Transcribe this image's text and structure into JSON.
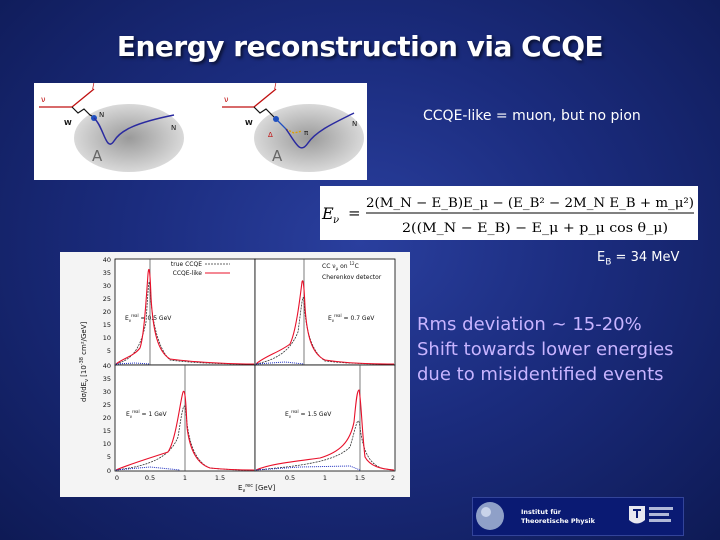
{
  "slide": {
    "title": "Energy reconstruction via CCQE",
    "ccqe_note": "CCQE-like = muon, but no pion",
    "binding_energy": "E",
    "binding_sub": "B",
    "binding_value": " = 34 MeV",
    "bullets": [
      "Rms deviation ~ 15-20%",
      "Shift towards lower energies",
      "due to misidentified events"
    ]
  },
  "diagrams": {
    "left": {
      "nu": "ν",
      "l": "l",
      "W": "W",
      "N1": "N",
      "N2": "N",
      "A": "A"
    },
    "right": {
      "nu": "ν",
      "l": "l",
      "W": "W",
      "Delta": "Δ",
      "pi": "π",
      "N": "N",
      "A": "A"
    }
  },
  "formula": {
    "lhs": "E",
    "lhs_sub": "ν",
    "eq": "=",
    "numerator": "2(M_N − E_B)E_μ − (E_B² − 2M_N E_B + m_μ²)",
    "denominator": "2((M_N − E_B) − E_μ + p_μ cos θ_μ)"
  },
  "plot": {
    "legend": {
      "true": "true CCQE",
      "like": "CCQE-like"
    },
    "top_right_labels": [
      "CC ν",
      "μ",
      " on ",
      "12",
      "C",
      "Cherenkov detector"
    ],
    "ylabel": "dσ/dE",
    "ylabel_sub": "ν",
    "ylabel_units": " [10",
    "ylabel_exp": "-38",
    "ylabel_tail": " cm²/GeV]",
    "xlabel": "E",
    "xlabel_sub": "ν",
    "xlabel_sup": "rec",
    "xlabel_units": " [GeV]",
    "panel_labels": [
      {
        "e": "E",
        "sub": "ν",
        "sup": "real",
        "val": " = 0.5 GeV"
      },
      {
        "e": "E",
        "sub": "ν",
        "sup": "real",
        "val": " = 0.7 GeV"
      },
      {
        "e": "E",
        "sub": "ν",
        "sup": "real",
        "val": " = 1 GeV"
      },
      {
        "e": "E",
        "sub": "ν",
        "sup": "real",
        "val": " = 1.5 GeV"
      }
    ],
    "yticks_top": [
      "40",
      "35",
      "30",
      "25",
      "20",
      "15",
      "10",
      "5"
    ],
    "yticks_bottom": [
      "40",
      "35",
      "30",
      "25",
      "20",
      "15",
      "10",
      "5",
      "0"
    ],
    "xticks": [
      "0",
      "0.5",
      "1",
      "1.5",
      "0.5",
      "1",
      "1.5",
      "2"
    ],
    "colors": {
      "true": "#333333",
      "like": "#e8102a",
      "pion": "#2030c0"
    }
  },
  "logo": {
    "line1": "Institut für",
    "line2": "Theoretische Physik"
  }
}
